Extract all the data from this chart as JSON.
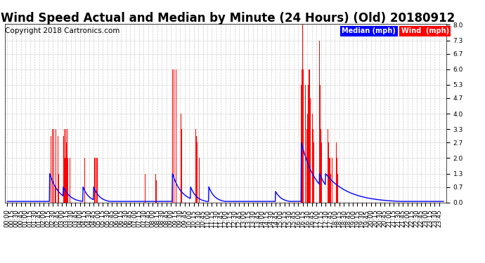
{
  "title": "Wind Speed Actual and Median by Minute (24 Hours) (Old) 20180912",
  "copyright": "Copyright 2018 Cartronics.com",
  "yticks": [
    0.0,
    0.7,
    1.3,
    2.0,
    2.7,
    3.3,
    4.0,
    4.7,
    5.3,
    6.0,
    6.7,
    7.3,
    8.0
  ],
  "ymax": 8.0,
  "ymin": 0.0,
  "legend_median_color": "#0000cc",
  "legend_wind_color": "#cc0000",
  "legend_median_label": "Median (mph)",
  "legend_wind_label": "Wind  (mph)",
  "background_color": "#ffffff",
  "plot_bg_color": "#ffffff",
  "grid_color": "#cccccc",
  "title_fontsize": 12,
  "copyright_fontsize": 7.5,
  "tick_fontsize": 6.5,
  "total_minutes": 1440
}
